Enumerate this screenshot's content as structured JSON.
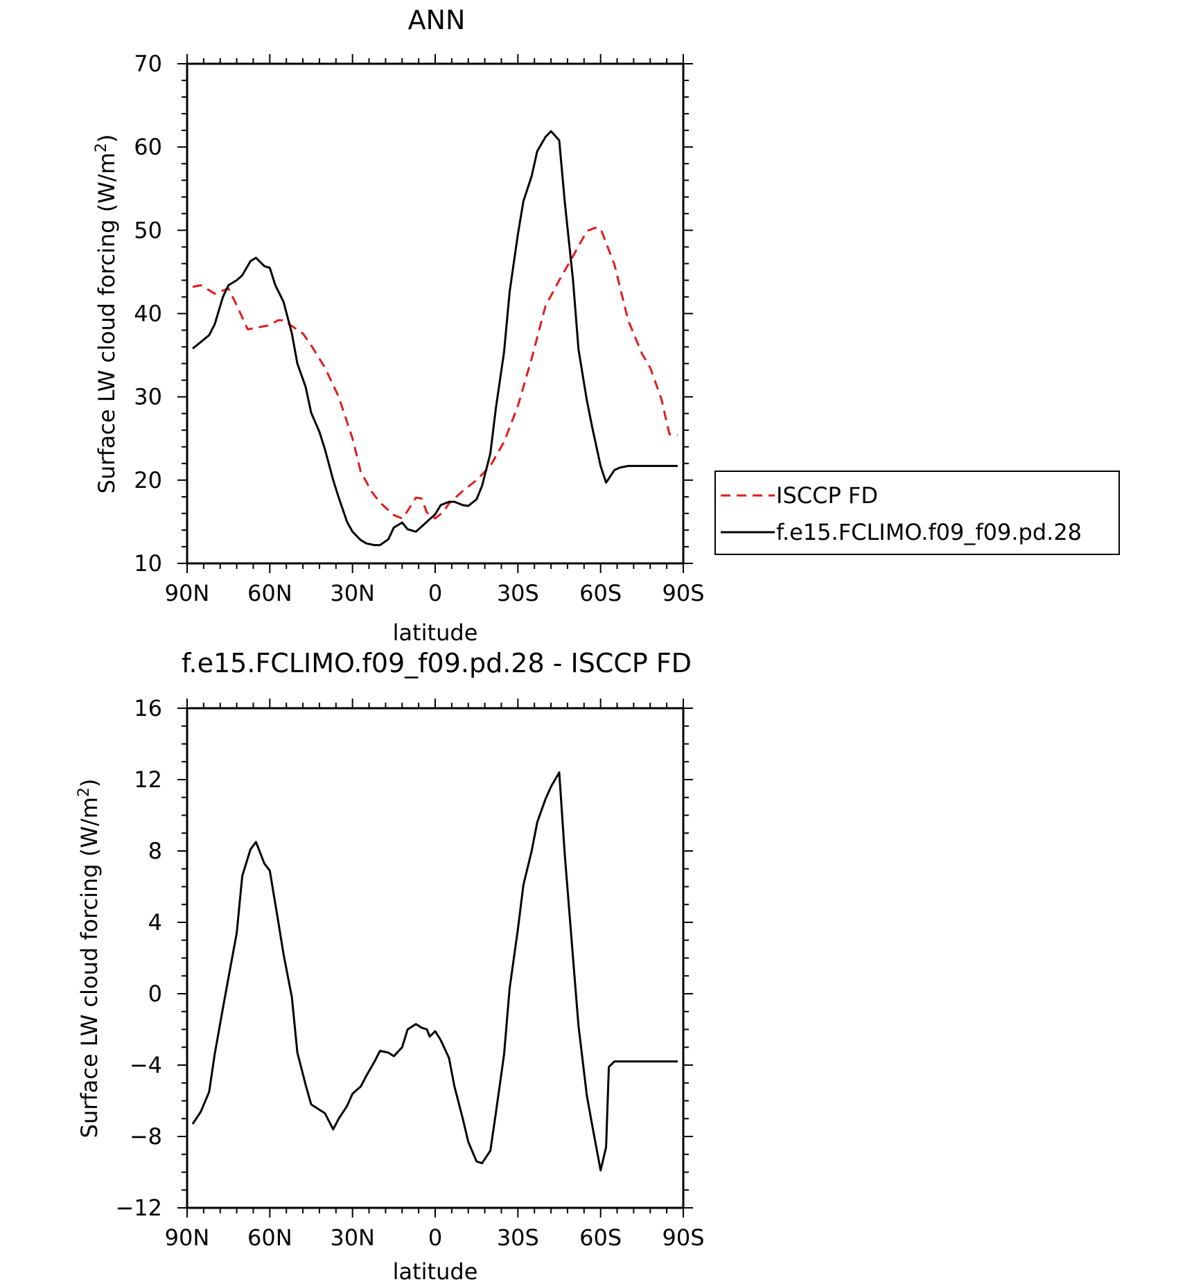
{
  "colors": {
    "isccp": "#e41a1c",
    "model": "#000000"
  },
  "chart_data": [
    {
      "type": "line",
      "title": "ANN",
      "xlabel": "latitude",
      "ylabel": "Surface LW cloud forcing (W/m",
      "ylabel_sup": "2",
      "ylabel_close": ")",
      "xlim": [
        -90,
        90
      ],
      "ylim": [
        10,
        70
      ],
      "xticks": [
        -90,
        -60,
        -30,
        0,
        30,
        60,
        90
      ],
      "xtick_labels": [
        "90N",
        "60N",
        "30N",
        "0",
        "30S",
        "60S",
        "90S"
      ],
      "yticks": [
        10,
        20,
        30,
        40,
        50,
        60,
        70
      ],
      "ytick_labels": [
        "10",
        "20",
        "30",
        "40",
        "50",
        "60",
        "70"
      ],
      "legend_position": "right",
      "series": [
        {
          "name": "ISCCP FD",
          "style": "dashed",
          "color": "#e41a1c",
          "x": [
            -88,
            -85,
            -80,
            -75,
            -72,
            -68,
            -65,
            -60,
            -57,
            -55,
            -52,
            -48,
            -45,
            -40,
            -35,
            -30,
            -27,
            -23,
            -20,
            -15,
            -12,
            -10,
            -7,
            -5,
            -3,
            0,
            3,
            5,
            10,
            15,
            20,
            25,
            30,
            35,
            40,
            45,
            50,
            55,
            58,
            60,
            62,
            65,
            70,
            75,
            78,
            82,
            85,
            88
          ],
          "y": [
            43.2,
            43.4,
            42.4,
            43.0,
            41.0,
            38.1,
            38.3,
            38.6,
            39.2,
            39.2,
            38.5,
            37.6,
            36.2,
            33.5,
            30.0,
            25.0,
            21.0,
            18.6,
            17.3,
            15.8,
            15.4,
            16.3,
            17.9,
            17.8,
            16.1,
            15.4,
            16.2,
            17.2,
            18.7,
            20.0,
            21.7,
            24.6,
            28.9,
            34.6,
            40.9,
            44.0,
            46.9,
            49.9,
            50.3,
            50.2,
            48.5,
            45.9,
            39.2,
            35.2,
            33.5,
            29.8,
            25.5,
            25.4
          ]
        },
        {
          "name": "f.e15.FCLIMO.f09_f09.pd.28",
          "style": "solid",
          "color": "#000000",
          "x": [
            -88,
            -85,
            -82,
            -80,
            -77,
            -75,
            -72,
            -70,
            -67,
            -65,
            -62,
            -60,
            -58,
            -55,
            -52,
            -50,
            -47,
            -45,
            -42,
            -40,
            -37,
            -35,
            -32,
            -30,
            -27,
            -25,
            -22,
            -20,
            -17,
            -15,
            -12,
            -10,
            -7,
            -5,
            -2,
            0,
            2,
            5,
            7,
            10,
            12,
            15,
            17,
            20,
            22,
            25,
            27,
            30,
            32,
            35,
            37,
            40,
            42,
            45,
            47,
            50,
            52,
            55,
            57,
            60,
            62,
            65,
            67,
            70,
            72,
            75,
            77,
            80,
            82,
            85,
            88
          ],
          "y": [
            35.8,
            36.6,
            37.4,
            38.7,
            42.0,
            43.4,
            44.0,
            44.6,
            46.3,
            46.7,
            45.7,
            45.5,
            43.4,
            41.4,
            37.6,
            34.0,
            31.2,
            28.1,
            25.8,
            23.7,
            20.0,
            17.9,
            15.0,
            13.8,
            12.8,
            12.4,
            12.2,
            12.2,
            12.9,
            14.3,
            14.9,
            14.1,
            13.8,
            14.4,
            15.3,
            15.9,
            17.0,
            17.4,
            17.4,
            17.0,
            16.9,
            17.7,
            19.3,
            23.2,
            28.6,
            35.4,
            42.6,
            49.5,
            53.5,
            56.5,
            59.5,
            61.2,
            61.9,
            60.8,
            53.4,
            44.0,
            35.7,
            29.6,
            26.3,
            21.7,
            19.7,
            21.2,
            21.5,
            21.7,
            21.7,
            21.7,
            21.7,
            21.7,
            21.7,
            21.7,
            21.7
          ]
        }
      ]
    },
    {
      "type": "line",
      "title": "f.e15.FCLIMO.f09_f09.pd.28 - ISCCP FD",
      "xlabel": "latitude",
      "ylabel": "Surface LW cloud forcing (W/m",
      "ylabel_sup": "2",
      "ylabel_close": ")",
      "xlim": [
        -90,
        90
      ],
      "ylim": [
        -12,
        16
      ],
      "xticks": [
        -90,
        -60,
        -30,
        0,
        30,
        60,
        90
      ],
      "xtick_labels": [
        "90N",
        "60N",
        "30N",
        "0",
        "30S",
        "60S",
        "90S"
      ],
      "yticks": [
        -12,
        -8,
        -4,
        0,
        4,
        8,
        12,
        16
      ],
      "ytick_labels": [
        "−12",
        "−8",
        "−4",
        "0",
        "4",
        "8",
        "12",
        "16"
      ],
      "series": [
        {
          "style": "solid",
          "color": "#000000",
          "x": [
            -88,
            -85,
            -82,
            -80,
            -77,
            -75,
            -72,
            -70,
            -67,
            -65,
            -62,
            -60,
            -57,
            -55,
            -52,
            -50,
            -47,
            -45,
            -42,
            -40,
            -37,
            -35,
            -32,
            -30,
            -27,
            -25,
            -22,
            -20,
            -17,
            -15,
            -12,
            -10,
            -7,
            -5,
            -3,
            -2,
            0,
            2,
            5,
            7,
            10,
            12,
            15,
            17,
            20,
            22,
            25,
            27,
            30,
            32,
            35,
            37,
            40,
            42,
            45,
            47,
            50,
            52,
            55,
            57,
            60,
            62,
            63,
            65,
            68,
            70,
            72,
            75,
            77,
            80,
            82,
            85,
            88
          ],
          "y": [
            -7.3,
            -6.6,
            -5.5,
            -3.4,
            -0.8,
            0.9,
            3.4,
            6.6,
            8.1,
            8.5,
            7.3,
            6.9,
            4.1,
            2.2,
            -0.2,
            -3.3,
            -5.1,
            -6.2,
            -6.5,
            -6.7,
            -7.6,
            -7.0,
            -6.3,
            -5.6,
            -5.2,
            -4.6,
            -3.8,
            -3.2,
            -3.3,
            -3.5,
            -3.0,
            -2.0,
            -1.7,
            -1.9,
            -2.0,
            -2.4,
            -2.1,
            -2.6,
            -3.6,
            -5.2,
            -7.0,
            -8.3,
            -9.4,
            -9.5,
            -8.8,
            -6.7,
            -3.4,
            0.3,
            3.6,
            6.1,
            8.0,
            9.6,
            10.9,
            11.6,
            12.4,
            7.8,
            2.0,
            -1.8,
            -5.7,
            -7.4,
            -9.9,
            -8.6,
            -4.1,
            -3.8,
            -3.8,
            -3.8,
            -3.8,
            -3.8,
            -3.8,
            -3.8,
            -3.8,
            -3.8,
            -3.8
          ]
        }
      ]
    }
  ]
}
